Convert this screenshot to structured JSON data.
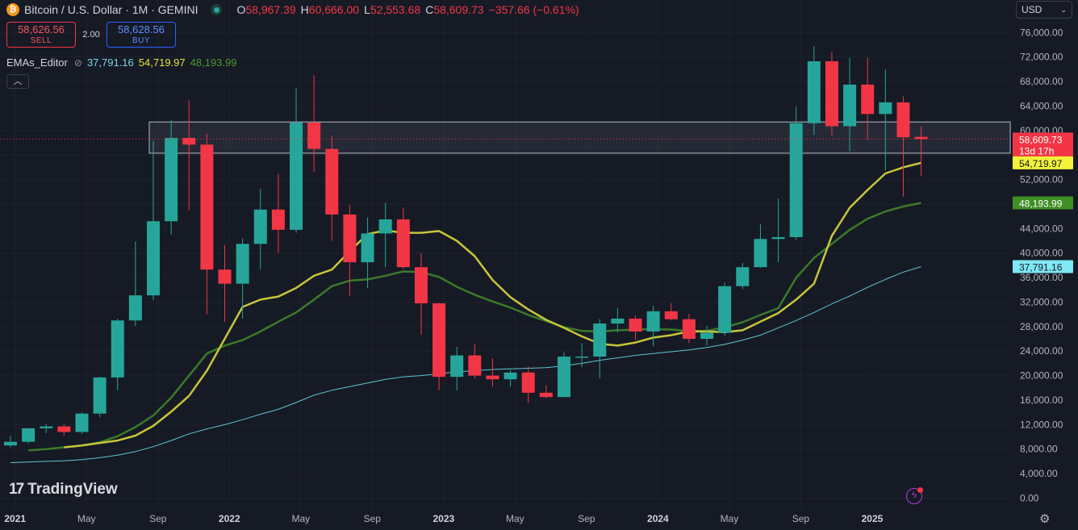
{
  "header": {
    "coin_symbol": "₿",
    "title": "Bitcoin / U.S. Dollar · 1M · GEMINI",
    "o_label": "O",
    "o_value": "58,967.39",
    "h_label": "H",
    "h_value": "60,666.00",
    "l_label": "L",
    "l_value": "52,553.68",
    "c_label": "C",
    "c_value": "58,609.73",
    "change": "−357.66 (−0.61%)"
  },
  "trade": {
    "sell_price": "58,626.56",
    "sell_label": "SELL",
    "spread": "2.00",
    "buy_price": "58,628.56",
    "buy_label": "BUY"
  },
  "indicator": {
    "name": "EMAs_Editor",
    "eye_icon": "eye-off-icon",
    "v1": "37,791.16",
    "v2": "54,719.97",
    "v3": "48,193.99"
  },
  "currency": {
    "value": "USD"
  },
  "brand": {
    "name": "TradingView"
  },
  "colors": {
    "up": "#26a69a",
    "down": "#f23645",
    "ema_slow": "#5fc6d3",
    "ema_fast": "#c6c63a",
    "ema_mid": "#3a7a2a",
    "bg": "#161a25"
  },
  "chart_data": {
    "type": "candlestick",
    "interval": "1M",
    "ylim": [
      0,
      78000
    ],
    "y_ticks": [
      0,
      4000,
      8000,
      12000,
      16000,
      20000,
      24000,
      28000,
      32000,
      36000,
      40000,
      44000,
      48000,
      52000,
      56000,
      60000,
      64000,
      68000,
      72000,
      76000
    ],
    "y_tick_labels": [
      "0.00",
      "4,000.00",
      "8,000.00",
      "12,000.00",
      "16,000.00",
      "20,000.00",
      "24,000.00",
      "28,000.00",
      "32,000.00",
      "36,000.00",
      "40,000.00",
      "44,000.00",
      "48,000.00",
      "52,000.00",
      "56,000.00",
      "60,000.00",
      "64,000.00",
      "68,000.00",
      "72,000.00",
      "76,000.00"
    ],
    "x_labels": [
      {
        "label": "Sep",
        "i": -3.74
      },
      {
        "label": "2021",
        "i": 0.26,
        "bold": true
      },
      {
        "label": "May",
        "i": 4.26
      },
      {
        "label": "Sep",
        "i": 8.26
      },
      {
        "label": "2022",
        "i": 12.26,
        "bold": true
      },
      {
        "label": "May",
        "i": 16.26
      },
      {
        "label": "Sep",
        "i": 20.26
      },
      {
        "label": "2023",
        "i": 24.26,
        "bold": true
      },
      {
        "label": "May",
        "i": 28.26
      },
      {
        "label": "Sep",
        "i": 32.26
      },
      {
        "label": "2024",
        "i": 36.26,
        "bold": true
      },
      {
        "label": "May",
        "i": 40.26
      },
      {
        "label": "Sep",
        "i": 44.26
      },
      {
        "label": "2025",
        "i": 48.26,
        "bold": true
      }
    ],
    "candles": [
      {
        "o": 8600,
        "h": 10200,
        "l": 8300,
        "c": 9200
      },
      {
        "o": 9200,
        "h": 11400,
        "l": 8900,
        "c": 11400
      },
      {
        "o": 11400,
        "h": 12100,
        "l": 10600,
        "c": 11700
      },
      {
        "o": 11700,
        "h": 12000,
        "l": 10200,
        "c": 10800
      },
      {
        "o": 10800,
        "h": 14000,
        "l": 10500,
        "c": 13800
      },
      {
        "o": 13800,
        "h": 19800,
        "l": 13200,
        "c": 19700
      },
      {
        "o": 19700,
        "h": 29300,
        "l": 17600,
        "c": 29000
      },
      {
        "o": 29000,
        "h": 41900,
        "l": 28100,
        "c": 33100
      },
      {
        "o": 33100,
        "h": 58300,
        "l": 32300,
        "c": 45200
      },
      {
        "o": 45200,
        "h": 61700,
        "l": 43000,
        "c": 58800
      },
      {
        "o": 58800,
        "h": 64900,
        "l": 47000,
        "c": 57700
      },
      {
        "o": 57700,
        "h": 59500,
        "l": 30000,
        "c": 37300
      },
      {
        "o": 37300,
        "h": 41300,
        "l": 28800,
        "c": 35000
      },
      {
        "o": 35000,
        "h": 42400,
        "l": 29300,
        "c": 41500
      },
      {
        "o": 41500,
        "h": 50500,
        "l": 37300,
        "c": 47100
      },
      {
        "o": 47100,
        "h": 52900,
        "l": 40000,
        "c": 43800
      },
      {
        "o": 43800,
        "h": 66900,
        "l": 43300,
        "c": 61300
      },
      {
        "o": 61300,
        "h": 69000,
        "l": 53300,
        "c": 57000
      },
      {
        "o": 57000,
        "h": 59100,
        "l": 42000,
        "c": 46300
      },
      {
        "o": 46300,
        "h": 47900,
        "l": 33000,
        "c": 38500
      },
      {
        "o": 38500,
        "h": 45800,
        "l": 34300,
        "c": 43200
      },
      {
        "o": 43200,
        "h": 48200,
        "l": 37700,
        "c": 45500
      },
      {
        "o": 45500,
        "h": 47400,
        "l": 37400,
        "c": 37700
      },
      {
        "o": 37700,
        "h": 40000,
        "l": 26700,
        "c": 31800
      },
      {
        "o": 31800,
        "h": 31900,
        "l": 17600,
        "c": 19800
      },
      {
        "o": 19800,
        "h": 24700,
        "l": 17600,
        "c": 23300
      },
      {
        "o": 23300,
        "h": 25200,
        "l": 19500,
        "c": 20000
      },
      {
        "o": 20000,
        "h": 22800,
        "l": 18200,
        "c": 19400
      },
      {
        "o": 19400,
        "h": 20900,
        "l": 18200,
        "c": 20500
      },
      {
        "o": 20500,
        "h": 21500,
        "l": 15500,
        "c": 17200
      },
      {
        "o": 17200,
        "h": 18400,
        "l": 16300,
        "c": 16500
      },
      {
        "o": 16500,
        "h": 23800,
        "l": 16500,
        "c": 23100
      },
      {
        "o": 23100,
        "h": 25300,
        "l": 21400,
        "c": 23100
      },
      {
        "o": 23100,
        "h": 29200,
        "l": 19600,
        "c": 28500
      },
      {
        "o": 28500,
        "h": 31000,
        "l": 27000,
        "c": 29300
      },
      {
        "o": 29300,
        "h": 29800,
        "l": 25800,
        "c": 27200
      },
      {
        "o": 27200,
        "h": 31400,
        "l": 24800,
        "c": 30500
      },
      {
        "o": 30500,
        "h": 31800,
        "l": 29000,
        "c": 29200
      },
      {
        "o": 29200,
        "h": 30100,
        "l": 25300,
        "c": 26000
      },
      {
        "o": 26000,
        "h": 28100,
        "l": 24900,
        "c": 27000
      },
      {
        "o": 27000,
        "h": 35200,
        "l": 26500,
        "c": 34600
      },
      {
        "o": 34600,
        "h": 38400,
        "l": 34100,
        "c": 37700
      },
      {
        "o": 37700,
        "h": 44700,
        "l": 37600,
        "c": 42300
      },
      {
        "o": 42300,
        "h": 48900,
        "l": 38500,
        "c": 42600
      },
      {
        "o": 42600,
        "h": 63900,
        "l": 42100,
        "c": 61200
      },
      {
        "o": 61200,
        "h": 73800,
        "l": 59300,
        "c": 71300
      },
      {
        "o": 71300,
        "h": 72800,
        "l": 59200,
        "c": 60700
      },
      {
        "o": 60700,
        "h": 71900,
        "l": 56600,
        "c": 67500
      },
      {
        "o": 67500,
        "h": 71900,
        "l": 58400,
        "c": 62700
      },
      {
        "o": 62700,
        "h": 70000,
        "l": 53500,
        "c": 64600
      },
      {
        "o": 64600,
        "h": 65600,
        "l": 49200,
        "c": 58900
      },
      {
        "o": 58967.39,
        "h": 60666.0,
        "l": 52553.68,
        "c": 58609.73
      }
    ],
    "ema_fast": [
      8300,
      8600,
      9000,
      9400,
      10200,
      11800,
      14100,
      16700,
      20800,
      26000,
      31200,
      32400,
      32900,
      34300,
      36300,
      37300,
      40300,
      43100,
      43700,
      43300,
      43300,
      43600,
      42000,
      39500,
      35600,
      32800,
      30800,
      29100,
      27800,
      26400,
      25200,
      24900,
      25400,
      26200,
      26600,
      27200,
      27200,
      27100,
      27400,
      28800,
      30200,
      32400,
      35000,
      42800,
      47400,
      50300,
      53000,
      54000,
      54719.97
    ],
    "ema_mid": [
      7800,
      8000,
      8300,
      8600,
      9100,
      10100,
      11600,
      13500,
      16400,
      20000,
      23600,
      24900,
      25800,
      27200,
      28800,
      30300,
      32400,
      34600,
      35500,
      35700,
      36300,
      37000,
      36900,
      36100,
      34500,
      33200,
      32100,
      31100,
      29900,
      28900,
      27900,
      27300,
      27200,
      27400,
      27500,
      27600,
      27500,
      27300,
      27300,
      27900,
      28700,
      29900,
      31000,
      36000,
      39200,
      41500,
      43800,
      45600,
      46800,
      47600,
      48193.99
    ],
    "ema_slow": [
      5800,
      5900,
      6000,
      6100,
      6300,
      6600,
      7000,
      7600,
      8400,
      9400,
      10500,
      11300,
      12000,
      12800,
      13700,
      14500,
      15600,
      16800,
      17600,
      18200,
      18800,
      19400,
      19800,
      20000,
      20300,
      20600,
      20800,
      21000,
      21100,
      21200,
      21300,
      21600,
      22000,
      22500,
      22900,
      23300,
      23600,
      23900,
      24200,
      24600,
      25100,
      25800,
      26600,
      27800,
      29000,
      30300,
      31700,
      33000,
      34400,
      35700,
      36900,
      37791.16
    ],
    "resistance_zone": {
      "from_i": 8,
      "low": 56300,
      "high": 61400
    },
    "last_price_label": "58,609.73",
    "countdown_label": "13d 17h",
    "ema_labels": [
      "54,719.97",
      "48,193.99",
      "37,791.16"
    ]
  }
}
